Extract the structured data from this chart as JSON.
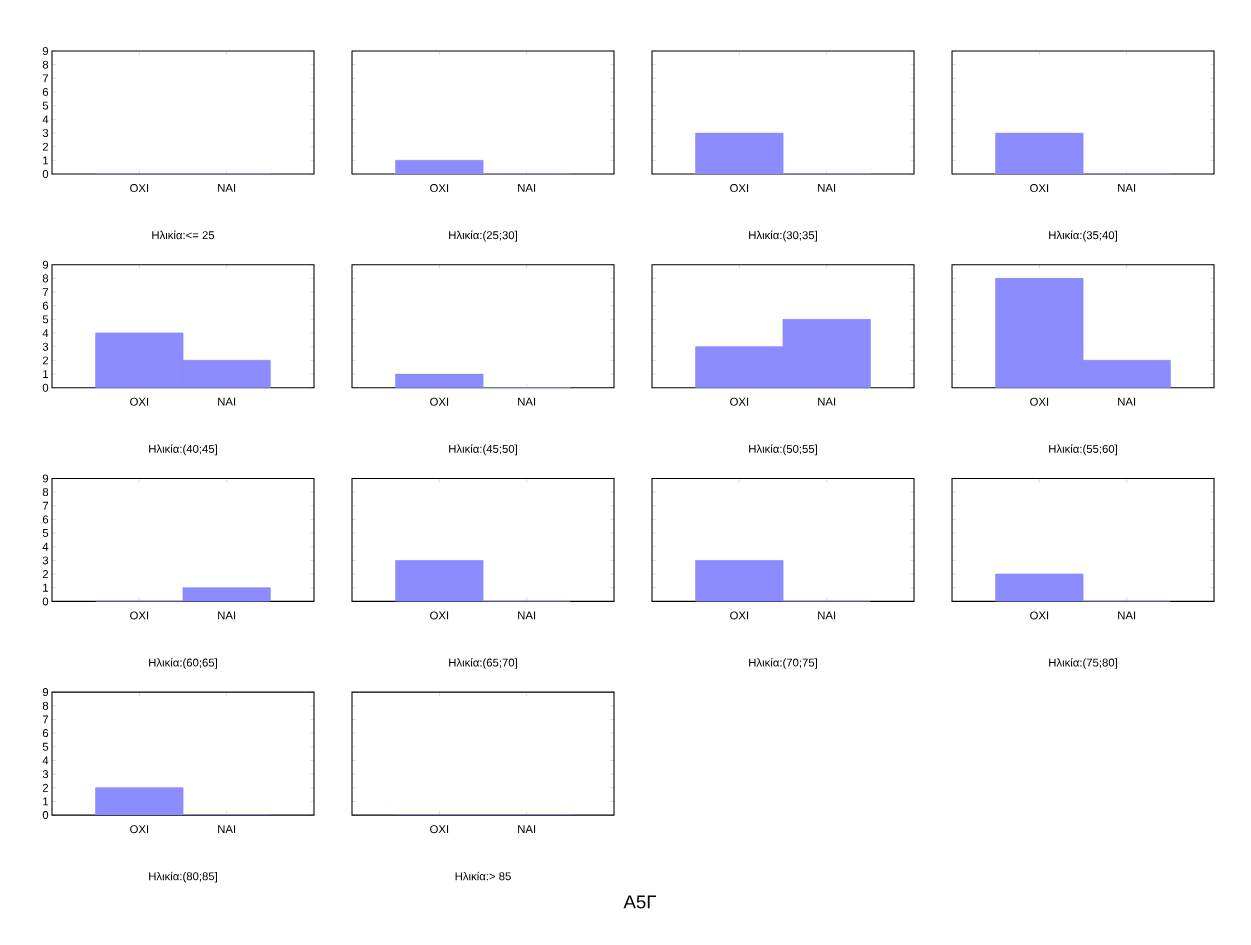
{
  "chart_data": [
    {
      "type": "bar",
      "categories": [
        "OXI",
        "NAI"
      ],
      "values": [
        0,
        0
      ],
      "color": "#8c8cff",
      "xlabel": "Ηλικία:<= 25",
      "ylim": [
        0,
        9
      ],
      "yticks": [
        0,
        1,
        2,
        3,
        4,
        5,
        6,
        7,
        8,
        9
      ]
    },
    {
      "type": "bar",
      "categories": [
        "OXI",
        "NAI"
      ],
      "values": [
        1,
        0
      ],
      "color": "#8c8cff",
      "xlabel": "Ηλικία:(25;30]",
      "ylim": [
        0,
        9
      ],
      "yticks": [
        0,
        1,
        2,
        3,
        4,
        5,
        6,
        7,
        8,
        9
      ],
      "tick_labels": "x"
    },
    {
      "type": "bar",
      "categories": [
        "OXI",
        "NAI"
      ],
      "values": [
        3,
        0
      ],
      "color": "#8c8cff",
      "xlabel": "Ηλικία:(30;35]",
      "ylim": [
        0,
        9
      ],
      "yticks": [
        0,
        1,
        2,
        3,
        4,
        5,
        6,
        7,
        8,
        9
      ],
      "tick_labels": "x"
    },
    {
      "type": "bar",
      "categories": [
        "OXI",
        "NAI"
      ],
      "values": [
        3,
        0
      ],
      "color": "#8c8cff",
      "xlabel": "Ηλικία:(35;40]",
      "ylim": [
        0,
        9
      ],
      "yticks": [
        0,
        1,
        2,
        3,
        4,
        5,
        6,
        7,
        8,
        9
      ],
      "tick_labels": "x"
    },
    {
      "type": "bar",
      "categories": [
        "OXI",
        "NAI"
      ],
      "values": [
        4,
        2
      ],
      "color": "#8c8cff",
      "xlabel": "Ηλικία:(40;45]",
      "ylim": [
        0,
        9
      ],
      "yticks": [
        0,
        1,
        2,
        3,
        4,
        5,
        6,
        7,
        8,
        9
      ]
    },
    {
      "type": "bar",
      "categories": [
        "OXI",
        "NAI"
      ],
      "values": [
        1,
        0
      ],
      "color": "#8c8cff",
      "xlabel": "Ηλικία:(45;50]",
      "ylim": [
        0,
        9
      ],
      "yticks": [
        0,
        1,
        2,
        3,
        4,
        5,
        6,
        7,
        8,
        9
      ],
      "tick_labels": "x"
    },
    {
      "type": "bar",
      "categories": [
        "OXI",
        "NAI"
      ],
      "values": [
        3,
        5
      ],
      "color": "#8c8cff",
      "xlabel": "Ηλικία:(50;55]",
      "ylim": [
        0,
        9
      ],
      "yticks": [
        0,
        1,
        2,
        3,
        4,
        5,
        6,
        7,
        8,
        9
      ],
      "tick_labels": "x"
    },
    {
      "type": "bar",
      "categories": [
        "OXI",
        "NAI"
      ],
      "values": [
        8,
        2
      ],
      "color": "#8c8cff",
      "xlabel": "Ηλικία:(55;60]",
      "ylim": [
        0,
        9
      ],
      "yticks": [
        0,
        1,
        2,
        3,
        4,
        5,
        6,
        7,
        8,
        9
      ],
      "tick_labels": "x"
    },
    {
      "type": "bar",
      "categories": [
        "OXI",
        "NAI"
      ],
      "values": [
        0,
        1
      ],
      "color": "#8c8cff",
      "xlabel": "Ηλικία:(60;65]",
      "ylim": [
        0,
        9
      ],
      "yticks": [
        0,
        1,
        2,
        3,
        4,
        5,
        6,
        7,
        8,
        9
      ]
    },
    {
      "type": "bar",
      "categories": [
        "OXI",
        "NAI"
      ],
      "values": [
        3,
        0
      ],
      "color": "#8c8cff",
      "xlabel": "Ηλικία:(65;70]",
      "ylim": [
        0,
        9
      ],
      "yticks": [
        0,
        1,
        2,
        3,
        4,
        5,
        6,
        7,
        8,
        9
      ],
      "tick_labels": "x"
    },
    {
      "type": "bar",
      "categories": [
        "OXI",
        "NAI"
      ],
      "values": [
        3,
        0
      ],
      "color": "#8c8cff",
      "xlabel": "Ηλικία:(70;75]",
      "ylim": [
        0,
        9
      ],
      "yticks": [
        0,
        1,
        2,
        3,
        4,
        5,
        6,
        7,
        8,
        9
      ],
      "tick_labels": "x"
    },
    {
      "type": "bar",
      "categories": [
        "OXI",
        "NAI"
      ],
      "values": [
        2,
        0
      ],
      "color": "#8c8cff",
      "xlabel": "Ηλικία:(75;80]",
      "ylim": [
        0,
        9
      ],
      "yticks": [
        0,
        1,
        2,
        3,
        4,
        5,
        6,
        7,
        8,
        9
      ],
      "tick_labels": "x"
    },
    {
      "type": "bar",
      "categories": [
        "OXI",
        "NAI"
      ],
      "values": [
        2,
        0
      ],
      "color": "#8c8cff",
      "xlabel": "Ηλικία:(80;85]",
      "ylim": [
        0,
        9
      ],
      "yticks": [
        0,
        1,
        2,
        3,
        4,
        5,
        6,
        7,
        8,
        9
      ]
    },
    {
      "type": "bar",
      "categories": [
        "OXI",
        "NAI"
      ],
      "values": [
        0,
        0
      ],
      "color": "#8c8cff",
      "xlabel": "Ηλικία:> 85",
      "ylim": [
        0,
        9
      ],
      "yticks": [
        0,
        1,
        2,
        3,
        4,
        5,
        6,
        7,
        8,
        9
      ],
      "tick_labels": "x",
      "annotations": [
        "A5Γ"
      ]
    }
  ]
}
